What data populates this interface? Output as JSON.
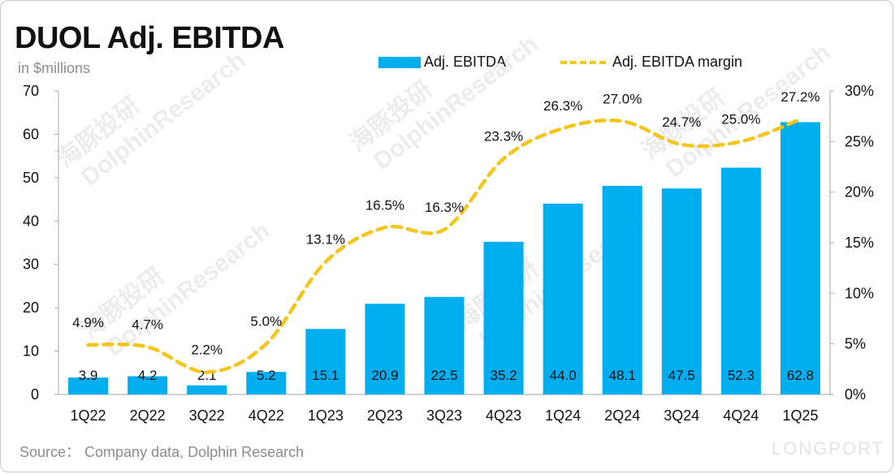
{
  "title": "DUOL Adj. EBITDA",
  "unit_label": "in $millions",
  "source": "Source： Company data, Dolphin Research",
  "colors": {
    "bar": "#00aeef",
    "line": "#f4c51a",
    "axis": "#a6a6a6",
    "text": "#111111"
  },
  "legend": {
    "bar_label": "Adj. EBITDA",
    "line_label": "Adj. EBITDA margin"
  },
  "watermarks": [
    "海豚投研",
    "DolphinResearch",
    "LONGPORT"
  ],
  "chart_data": {
    "type": "bar",
    "title": "DUOL Adj. EBITDA",
    "categories": [
      "1Q22",
      "2Q22",
      "3Q22",
      "4Q22",
      "1Q23",
      "2Q23",
      "3Q23",
      "4Q23",
      "1Q24",
      "2Q24",
      "3Q24",
      "4Q24",
      "1Q25"
    ],
    "series": [
      {
        "name": "Adj. EBITDA",
        "type": "bar",
        "axis": "left",
        "values": [
          3.9,
          4.2,
          2.1,
          5.2,
          15.1,
          20.9,
          22.5,
          35.2,
          44.0,
          48.1,
          47.5,
          52.3,
          62.8
        ],
        "labels": [
          "3.9",
          "4.2",
          "2.1",
          "5.2",
          "15.1",
          "20.9",
          "22.5",
          "35.2",
          "44.0",
          "48.1",
          "47.5",
          "52.3",
          "62.8"
        ]
      },
      {
        "name": "Adj. EBITDA margin",
        "type": "line",
        "axis": "right",
        "values": [
          4.9,
          4.7,
          2.2,
          5.0,
          13.1,
          16.5,
          16.3,
          23.3,
          26.3,
          27.0,
          24.7,
          25.0,
          27.2
        ],
        "labels": [
          "4.9%",
          "4.7%",
          "2.2%",
          "5.0%",
          "13.1%",
          "16.5%",
          "16.3%",
          "23.3%",
          "26.3%",
          "27.0%",
          "24.7%",
          "25.0%",
          "27.2%"
        ]
      }
    ],
    "ylim_left": [
      0,
      70
    ],
    "yticks_left": [
      "0",
      "10",
      "20",
      "30",
      "40",
      "50",
      "60",
      "70"
    ],
    "ylim_right": [
      0,
      30
    ],
    "yticks_right": [
      "0%",
      "5%",
      "10%",
      "15%",
      "20%",
      "25%",
      "30%"
    ],
    "grid": false,
    "legend_position": "top"
  }
}
